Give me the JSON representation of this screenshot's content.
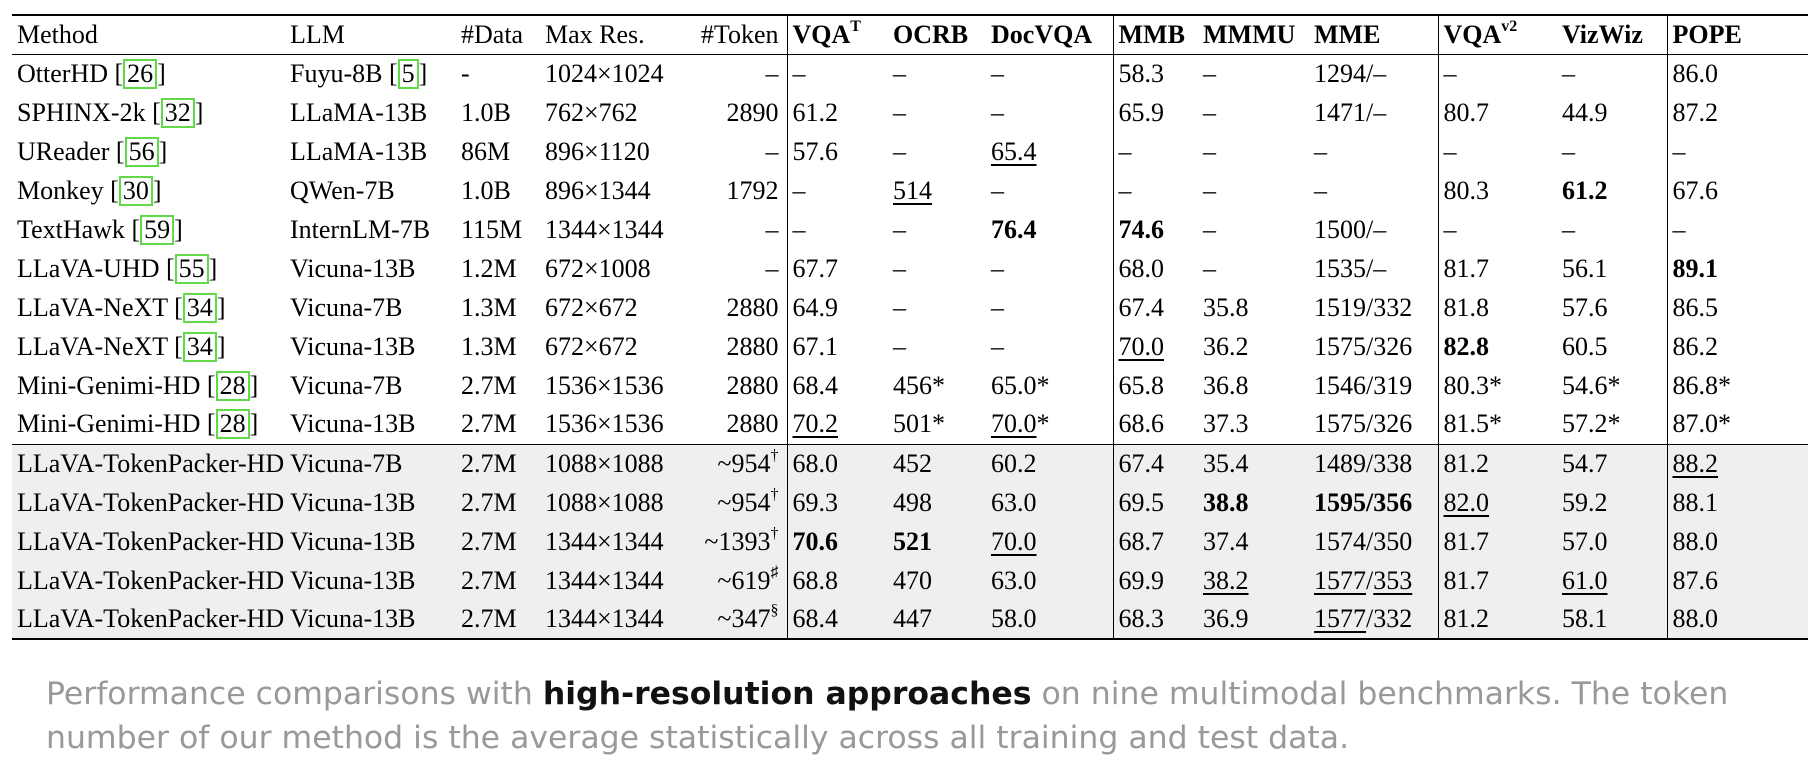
{
  "header": {
    "method": "Method",
    "llm": "LLM",
    "data": "#Data",
    "maxres": "Max Res.",
    "token": "#Token",
    "vqat_base": "VQA",
    "vqat_sup": "T",
    "ocrb": "OCRB",
    "docvqa": "DocVQA",
    "mmb": "MMB",
    "mmmu": "MMMU",
    "mme": "MME",
    "vqav2_base": "VQA",
    "vqav2_sup": "v2",
    "vizwiz": "VizWiz",
    "pope": "POPE"
  },
  "rows": [
    {
      "method": "OtterHD",
      "cite": "26",
      "llm": "Fuyu-8B",
      "llm_cite": "5",
      "data": "-",
      "res": "1024×1024",
      "tok": "–",
      "tok_sup": "",
      "vqat": "–",
      "ocrb": "–",
      "doc": "–",
      "mmb": "58.3",
      "mmmu": "–",
      "mme_a": "1294/–",
      "mme_b": "",
      "vqav2": "–",
      "viz": "–",
      "pope": "86.0"
    },
    {
      "method": "SPHINX-2k",
      "cite": "32",
      "llm": "LLaMA-13B",
      "llm_cite": "",
      "data": "1.0B",
      "res": "762×762",
      "tok": "2890",
      "tok_sup": "",
      "vqat": "61.2",
      "ocrb": "–",
      "doc": "–",
      "mmb": "65.9",
      "mmmu": "–",
      "mme_a": "1471/–",
      "mme_b": "",
      "vqav2": "80.7",
      "viz": "44.9",
      "pope": "87.2"
    },
    {
      "method": "UReader",
      "cite": "56",
      "llm": "LLaMA-13B",
      "llm_cite": "",
      "data": "86M",
      "res": "896×1120",
      "tok": "–",
      "tok_sup": "",
      "vqat": "57.6",
      "ocrb": "–",
      "doc": "65.4",
      "mmb": "–",
      "mmmu": "–",
      "mme_a": "–",
      "mme_b": "",
      "vqav2": "–",
      "viz": "–",
      "pope": "–"
    },
    {
      "method": "Monkey",
      "cite": "30",
      "llm": "QWen-7B",
      "llm_cite": "",
      "data": "1.0B",
      "res": "896×1344",
      "tok": "1792",
      "tok_sup": "",
      "vqat": "–",
      "ocrb": "514",
      "doc": "–",
      "mmb": "–",
      "mmmu": "–",
      "mme_a": "–",
      "mme_b": "",
      "vqav2": "80.3",
      "viz": "61.2",
      "pope": "67.6"
    },
    {
      "method": "TextHawk",
      "cite": "59",
      "llm": "InternLM-7B",
      "llm_cite": "",
      "data": "115M",
      "res": "1344×1344",
      "tok": "–",
      "tok_sup": "",
      "vqat": "–",
      "ocrb": "–",
      "doc": "76.4",
      "mmb": "74.6",
      "mmmu": "–",
      "mme_a": "1500/–",
      "mme_b": "",
      "vqav2": "–",
      "viz": "–",
      "pope": "–"
    },
    {
      "method": "LLaVA-UHD",
      "cite": "55",
      "llm": "Vicuna-13B",
      "llm_cite": "",
      "data": "1.2M",
      "res": "672×1008",
      "tok": "–",
      "tok_sup": "",
      "vqat": "67.7",
      "ocrb": "–",
      "doc": "–",
      "mmb": "68.0",
      "mmmu": "–",
      "mme_a": "1535/–",
      "mme_b": "",
      "vqav2": "81.7",
      "viz": "56.1",
      "pope": "89.1"
    },
    {
      "method": "LLaVA-NeXT",
      "cite": "34",
      "llm": "Vicuna-7B",
      "llm_cite": "",
      "data": "1.3M",
      "res": "672×672",
      "tok": "2880",
      "tok_sup": "",
      "vqat": "64.9",
      "ocrb": "–",
      "doc": "–",
      "mmb": "67.4",
      "mmmu": "35.8",
      "mme_a": "1519/332",
      "mme_b": "",
      "vqav2": "81.8",
      "viz": "57.6",
      "pope": "86.5"
    },
    {
      "method": "LLaVA-NeXT",
      "cite": "34",
      "llm": "Vicuna-13B",
      "llm_cite": "",
      "data": "1.3M",
      "res": "672×672",
      "tok": "2880",
      "tok_sup": "",
      "vqat": "67.1",
      "ocrb": "–",
      "doc": "–",
      "mmb": "70.0",
      "mmmu": "36.2",
      "mme_a": "1575/326",
      "mme_b": "",
      "vqav2": "82.8",
      "viz": "60.5",
      "pope": "86.2"
    },
    {
      "method": "Mini-Genimi-HD",
      "cite": "28",
      "llm": "Vicuna-7B",
      "llm_cite": "",
      "data": "2.7M",
      "res": "1536×1536",
      "tok": "2880",
      "tok_sup": "",
      "vqat": "68.4",
      "ocrb": "456*",
      "doc": "65.0*",
      "mmb": "65.8",
      "mmmu": "36.8",
      "mme_a": "1546/319",
      "mme_b": "",
      "vqav2": "80.3*",
      "viz": "54.6*",
      "pope": "86.8*"
    },
    {
      "method": "Mini-Genimi-HD",
      "cite": "28",
      "llm": "Vicuna-13B",
      "llm_cite": "",
      "data": "2.7M",
      "res": "1536×1536",
      "tok": "2880",
      "tok_sup": "",
      "vqat": "70.2",
      "ocrb": "501*",
      "doc": "70.0",
      "doc_tail": "*",
      "mmb": "68.6",
      "mmmu": "37.3",
      "mme_a": "1575/326",
      "mme_b": "",
      "vqav2": "81.5*",
      "viz": "57.2*",
      "pope": "87.0*"
    },
    {
      "method": "LLaVA-TokenPacker-HD",
      "cite": "",
      "llm": "Vicuna-7B",
      "llm_cite": "",
      "data": "2.7M",
      "res": "1088×1088",
      "tok": "~954",
      "tok_sup": "†",
      "vqat": "68.0",
      "ocrb": "452",
      "doc": "60.2",
      "mmb": "67.4",
      "mmmu": "35.4",
      "mme_a": "1489/338",
      "mme_b": "",
      "vqav2": "81.2",
      "viz": "54.7",
      "pope": "88.2"
    },
    {
      "method": "LLaVA-TokenPacker-HD",
      "cite": "",
      "llm": "Vicuna-13B",
      "llm_cite": "",
      "data": "2.7M",
      "res": "1088×1088",
      "tok": "~954",
      "tok_sup": "†",
      "vqat": "69.3",
      "ocrb": "498",
      "doc": "63.0",
      "mmb": "69.5",
      "mmmu": "38.8",
      "mme_a": "1595/356",
      "mme_b": "",
      "vqav2": "82.0",
      "viz": "59.2",
      "pope": "88.1"
    },
    {
      "method": "LLaVA-TokenPacker-HD",
      "cite": "",
      "llm": "Vicuna-13B",
      "llm_cite": "",
      "data": "2.7M",
      "res": "1344×1344",
      "tok": "~1393",
      "tok_sup": "†",
      "vqat": "70.6",
      "ocrb": "521",
      "doc": "70.0",
      "mmb": "68.7",
      "mmmu": "37.4",
      "mme_a": "1574/350",
      "mme_b": "",
      "vqav2": "81.7",
      "viz": "57.0",
      "pope": "88.0"
    },
    {
      "method": "LLaVA-TokenPacker-HD",
      "cite": "",
      "llm": "Vicuna-13B",
      "llm_cite": "",
      "data": "2.7M",
      "res": "1344×1344",
      "tok": "~619",
      "tok_sup": "♯",
      "vqat": "68.8",
      "ocrb": "470",
      "doc": "63.0",
      "mmb": "69.9",
      "mmmu": "38.2",
      "mme_a": "1577",
      "mme_b": "353",
      "vqav2": "81.7",
      "viz": "61.0",
      "pope": "87.6"
    },
    {
      "method": "LLaVA-TokenPacker-HD",
      "cite": "",
      "llm": "Vicuna-13B",
      "llm_cite": "",
      "data": "2.7M",
      "res": "1344×1344",
      "tok": "~347",
      "tok_sup": "§",
      "vqat": "68.4",
      "ocrb": "447",
      "doc": "58.0",
      "mmb": "68.3",
      "mmmu": "36.9",
      "mme_a": "1577",
      "mme_b": "332",
      "vqav2": "81.2",
      "viz": "58.1",
      "pope": "88.0"
    }
  ],
  "caption": {
    "pre": "Performance comparisons with ",
    "bold": "high-resolution approaches",
    "post": " on nine multimodal benchmarks. The token number of our method is the average statistically across all training and test data."
  }
}
